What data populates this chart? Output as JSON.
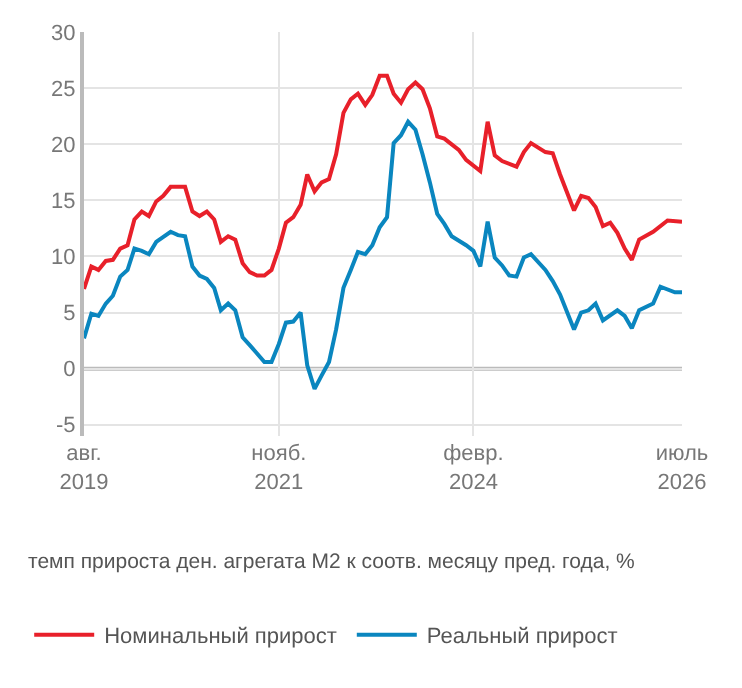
{
  "chart_data": {
    "type": "line",
    "annotations": [
      "темп прироста ден. агрегата М2 к соотв. месяцу пред. года, %"
    ],
    "xlim": [
      "2019-08",
      "2026-07"
    ],
    "xticks": [
      {
        "value": "2019-08",
        "label": "авг.\n2019"
      },
      {
        "value": "2021-11",
        "label": "нояб.\n2021"
      },
      {
        "value": "2024-02",
        "label": "февр.\n2024"
      },
      {
        "value": "2026-07",
        "label": "июль\n2026"
      }
    ],
    "ylim": [
      -6,
      30
    ],
    "yticks": [
      -5,
      0,
      5,
      10,
      15,
      20,
      25,
      30
    ],
    "grid": true,
    "legend": "bottom",
    "marker": "none",
    "line_style": "solid",
    "ref_lines": [
      {
        "axis": "y",
        "value": 0,
        "color": "#bbbbbb"
      }
    ],
    "series": [
      {
        "name": "Номинальный прирост",
        "color": "#e8202a",
        "x": [
          "2019-08",
          "2019-09",
          "2019-10",
          "2019-11",
          "2019-12",
          "2020-01",
          "2020-02",
          "2020-03",
          "2020-04",
          "2020-05",
          "2020-06",
          "2020-07",
          "2020-08",
          "2020-10",
          "2020-11",
          "2020-12",
          "2021-01",
          "2021-02",
          "2021-03",
          "2021-04",
          "2021-05",
          "2021-06",
          "2021-07",
          "2021-08",
          "2021-09",
          "2021-10",
          "2021-11",
          "2021-12",
          "2022-01",
          "2022-02",
          "2022-03",
          "2022-04",
          "2022-05",
          "2022-06",
          "2022-07",
          "2022-08",
          "2022-09",
          "2022-10",
          "2022-11",
          "2022-12",
          "2023-01",
          "2023-02",
          "2023-03",
          "2023-04",
          "2023-05",
          "2023-06",
          "2023-07",
          "2023-08",
          "2023-09",
          "2023-10",
          "2023-12",
          "2024-01",
          "2024-03",
          "2024-04",
          "2024-05",
          "2024-06",
          "2024-08",
          "2024-09",
          "2024-10",
          "2024-12",
          "2025-01",
          "2025-02",
          "2025-04",
          "2025-05",
          "2025-06",
          "2025-07",
          "2025-08",
          "2025-09",
          "2025-10",
          "2025-11",
          "2025-12",
          "2026-01",
          "2026-03",
          "2026-05",
          "2026-07"
        ],
        "values": [
          7.1,
          9.1,
          8.8,
          9.6,
          9.7,
          10.7,
          11.0,
          13.3,
          14.0,
          13.6,
          14.9,
          15.4,
          16.2,
          16.2,
          14.0,
          13.6,
          14.0,
          13.3,
          11.3,
          11.8,
          11.5,
          9.4,
          8.6,
          8.3,
          8.3,
          8.8,
          10.7,
          13.0,
          13.5,
          14.6,
          17.3,
          15.8,
          16.6,
          16.9,
          19.1,
          22.8,
          24.0,
          24.5,
          23.5,
          24.4,
          26.1,
          26.1,
          24.5,
          23.7,
          24.9,
          25.5,
          24.9,
          23.2,
          20.7,
          20.5,
          19.5,
          18.6,
          17.6,
          22.0,
          19.0,
          18.5,
          18.0,
          19.3,
          20.1,
          19.3,
          19.2,
          17.3,
          14.1,
          15.4,
          15.2,
          14.4,
          12.7,
          13.0,
          12.1,
          10.7,
          9.7,
          11.5,
          12.2,
          13.2,
          13.1
        ]
      },
      {
        "name": "Реальный прирост",
        "color": "#0a86bf",
        "x": [
          "2019-08",
          "2019-09",
          "2019-10",
          "2019-11",
          "2019-12",
          "2020-01",
          "2020-02",
          "2020-03",
          "2020-04",
          "2020-05",
          "2020-06",
          "2020-08",
          "2020-09",
          "2020-10",
          "2020-11",
          "2020-12",
          "2021-01",
          "2021-02",
          "2021-03",
          "2021-04",
          "2021-05",
          "2021-06",
          "2021-07",
          "2021-09",
          "2021-10",
          "2021-11",
          "2021-12",
          "2022-01",
          "2022-02",
          "2022-03",
          "2022-04",
          "2022-05",
          "2022-06",
          "2022-07",
          "2022-08",
          "2022-09",
          "2022-10",
          "2022-11",
          "2022-12",
          "2023-01",
          "2023-02",
          "2023-03",
          "2023-04",
          "2023-05",
          "2023-06",
          "2023-07",
          "2023-08",
          "2023-09",
          "2023-10",
          "2023-11",
          "2024-01",
          "2024-02",
          "2024-03",
          "2024-04",
          "2024-05",
          "2024-06",
          "2024-07",
          "2024-08",
          "2024-09",
          "2024-10",
          "2024-12",
          "2025-01",
          "2025-02",
          "2025-04",
          "2025-05",
          "2025-06",
          "2025-07",
          "2025-08",
          "2025-10",
          "2025-11",
          "2025-12",
          "2026-01",
          "2026-03",
          "2026-04",
          "2026-06",
          "2026-07"
        ],
        "values": [
          2.7,
          4.9,
          4.7,
          5.8,
          6.5,
          8.2,
          8.8,
          10.7,
          10.5,
          10.2,
          11.3,
          12.2,
          11.9,
          11.8,
          9.1,
          8.3,
          8.0,
          7.2,
          5.2,
          5.8,
          5.2,
          2.8,
          2.1,
          0.6,
          0.6,
          2.2,
          4.1,
          4.2,
          5.0,
          0.3,
          -1.8,
          -0.6,
          0.6,
          3.5,
          7.2,
          8.8,
          10.4,
          10.2,
          11.0,
          12.6,
          13.5,
          20.1,
          20.8,
          22.0,
          21.3,
          19.1,
          16.6,
          13.8,
          12.9,
          11.8,
          11.0,
          10.5,
          9.1,
          13.1,
          9.9,
          9.2,
          8.3,
          8.2,
          9.9,
          10.2,
          8.8,
          7.8,
          6.6,
          3.5,
          5.0,
          5.2,
          5.8,
          4.3,
          5.2,
          4.7,
          3.6,
          5.2,
          5.8,
          7.3,
          6.8,
          6.8
        ]
      }
    ]
  }
}
